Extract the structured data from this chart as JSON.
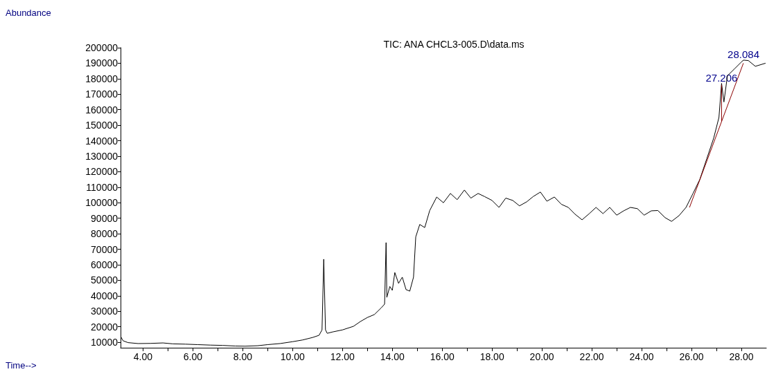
{
  "chart_data": {
    "type": "line",
    "title": "TIC: ANA CHCL3-005.D\\data.ms",
    "ylabel": "Abundance",
    "xlim": [
      3.1,
      29.0
    ],
    "xticks": [
      {
        "value": 4,
        "label": "4.00"
      },
      {
        "value": 5,
        "label": null
      },
      {
        "value": 6,
        "label": "6.00"
      },
      {
        "value": 7,
        "label": null
      },
      {
        "value": 8,
        "label": "8.00"
      },
      {
        "value": 9,
        "label": null
      },
      {
        "value": 10,
        "label": "10.00"
      },
      {
        "value": 11,
        "label": null
      },
      {
        "value": 12,
        "label": "12.00"
      },
      {
        "value": 13,
        "label": null
      },
      {
        "value": 14,
        "label": "14.00"
      },
      {
        "value": 15,
        "label": null
      },
      {
        "value": 16,
        "label": "16.00"
      },
      {
        "value": 17,
        "label": null
      },
      {
        "value": 18,
        "label": "18.00"
      },
      {
        "value": 19,
        "label": null
      },
      {
        "value": 20,
        "label": "20.00"
      },
      {
        "value": 21,
        "label": null
      },
      {
        "value": 22,
        "label": "22.00"
      },
      {
        "value": 23,
        "label": null
      },
      {
        "value": 24,
        "label": "24.00"
      },
      {
        "value": 25,
        "label": null
      },
      {
        "value": 26,
        "label": "26.00"
      },
      {
        "value": 27,
        "label": null
      },
      {
        "value": 28,
        "label": "28.00"
      }
    ],
    "ylim": [
      6500,
      200000
    ],
    "yticks": [
      10000,
      20000,
      30000,
      40000,
      50000,
      60000,
      70000,
      80000,
      90000,
      100000,
      110000,
      120000,
      130000,
      140000,
      150000,
      160000,
      170000,
      180000,
      190000,
      200000
    ],
    "grid": false,
    "marker": "none",
    "line_style": "solid",
    "series": [
      {
        "color": "#000000",
        "x": [
          3.11,
          3.2,
          3.4,
          3.8,
          4.3,
          4.8,
          5.2,
          5.7,
          6.2,
          6.7,
          7.2,
          7.7,
          8.1,
          8.6,
          9.0,
          9.5,
          10.0,
          10.4,
          10.8,
          11.06,
          11.18,
          11.25,
          11.32,
          11.39,
          11.61,
          12.0,
          12.44,
          12.72,
          13.0,
          13.28,
          13.56,
          13.69,
          13.75,
          13.78,
          13.9,
          14.0,
          14.1,
          14.25,
          14.4,
          14.55,
          14.7,
          14.85,
          14.94,
          15.1,
          15.3,
          15.5,
          15.78,
          16.05,
          16.33,
          16.6,
          16.89,
          17.15,
          17.44,
          17.7,
          18.0,
          18.28,
          18.55,
          18.83,
          19.1,
          19.39,
          19.65,
          19.94,
          20.2,
          20.5,
          20.78,
          21.06,
          21.33,
          21.61,
          21.9,
          22.17,
          22.45,
          22.72,
          23.0,
          23.28,
          23.55,
          23.83,
          24.1,
          24.39,
          24.65,
          24.94,
          25.2,
          25.5,
          25.78,
          26.06,
          26.33,
          26.61,
          26.89,
          27.1,
          27.206,
          27.3,
          27.44,
          27.72,
          28.0,
          28.084,
          28.28,
          28.56,
          28.97
        ],
        "values": [
          13600,
          11000,
          9800,
          9200,
          9300,
          9600,
          9000,
          8800,
          8500,
          8200,
          8000,
          7600,
          7500,
          7800,
          8500,
          9200,
          10400,
          11500,
          13100,
          14500,
          18000,
          63600,
          18000,
          15800,
          16700,
          18000,
          20300,
          23400,
          26000,
          27900,
          32300,
          34600,
          74300,
          39000,
          46000,
          43500,
          55000,
          48000,
          52000,
          44000,
          43000,
          52000,
          78000,
          86000,
          84000,
          95000,
          103700,
          100000,
          106000,
          102000,
          108200,
          103000,
          106000,
          104000,
          101500,
          97000,
          103000,
          101500,
          98000,
          100600,
          104000,
          106900,
          101000,
          103700,
          99000,
          97000,
          92600,
          89000,
          93000,
          97000,
          93000,
          97000,
          92000,
          94800,
          97000,
          96200,
          92000,
          94800,
          95000,
          90400,
          88000,
          91700,
          97000,
          106000,
          114900,
          128300,
          141700,
          155000,
          177000,
          165000,
          181900,
          186300,
          190800,
          192000,
          191700,
          188000,
          190000
        ]
      },
      {
        "color": "#8b0000",
        "x": [
          25.92,
          28.08
        ],
        "values": [
          97000,
          190000
        ]
      },
      {
        "color": "#8b0000",
        "x": [
          27.206,
          27.206
        ],
        "values": [
          176000,
          152300
        ]
      }
    ],
    "annotations": [
      "Time-->",
      {
        "text": "27.206",
        "x": 27.206,
        "y": 177000
      },
      {
        "text": "28.084",
        "x": 28.084,
        "y": 192000
      }
    ]
  }
}
